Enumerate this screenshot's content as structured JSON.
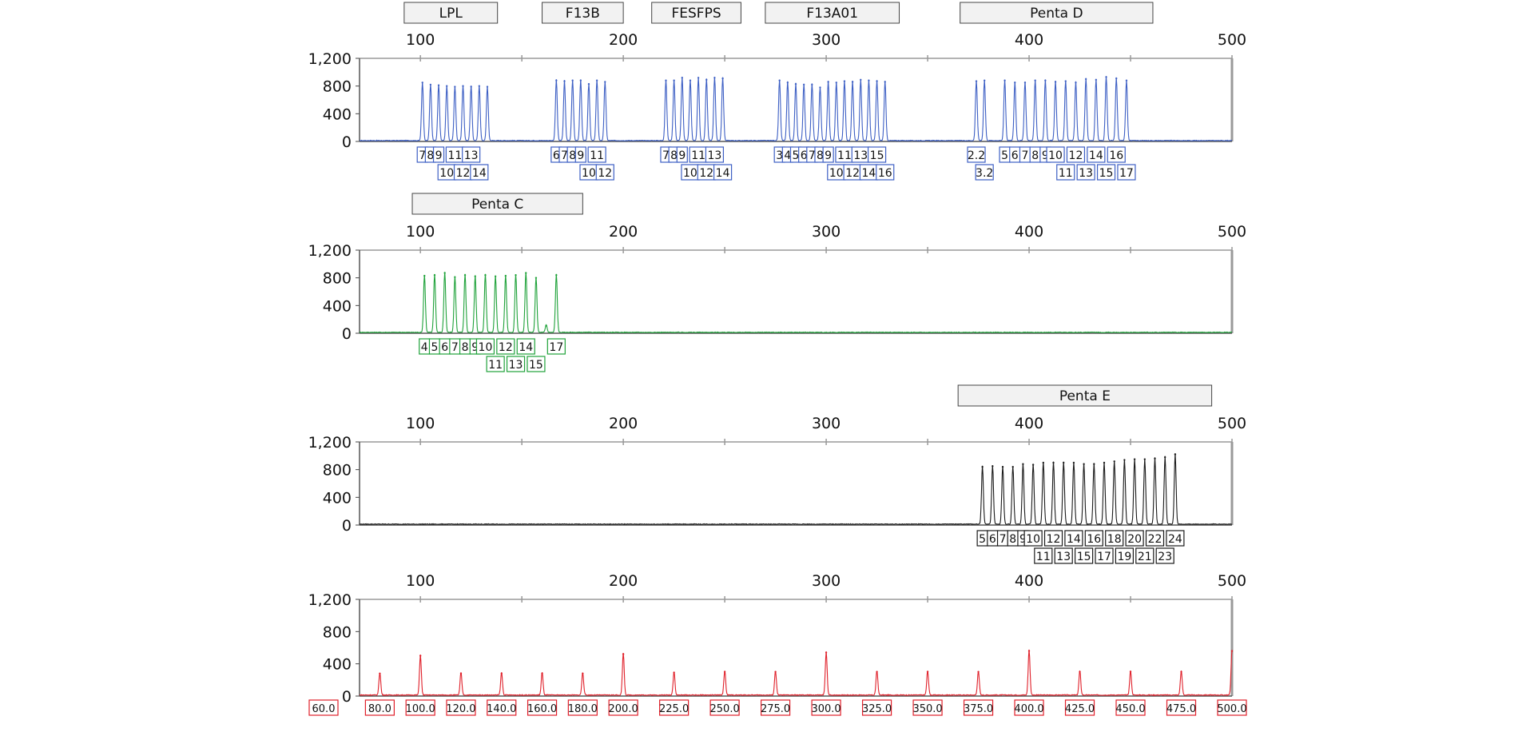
{
  "x_ticks": [
    "100",
    "200",
    "300",
    "400",
    "500"
  ],
  "y_ticks": [
    "1,200",
    "800",
    "400",
    "0"
  ],
  "x_axis": {
    "min": 70,
    "max": 500
  },
  "y_axis": {
    "min": 0,
    "max": 1200
  },
  "colors": {
    "blue": "#3d5fc4",
    "green": "#1fa23a",
    "black": "#1a1a1a",
    "red": "#e0202a",
    "axis": "#9a9a9a"
  },
  "chart_data": [
    {
      "type": "line",
      "series": [
        {
          "color": "#3d5fc4",
          "values": [
            {
              "x": 101,
              "y": 850
            },
            {
              "x": 105,
              "y": 820
            },
            {
              "x": 109,
              "y": 810
            },
            {
              "x": 113,
              "y": 800
            },
            {
              "x": 117,
              "y": 790
            },
            {
              "x": 121,
              "y": 800
            },
            {
              "x": 125,
              "y": 790
            },
            {
              "x": 129,
              "y": 800
            },
            {
              "x": 133,
              "y": 790
            },
            {
              "x": 167,
              "y": 880
            },
            {
              "x": 171,
              "y": 870
            },
            {
              "x": 175,
              "y": 880
            },
            {
              "x": 179,
              "y": 880
            },
            {
              "x": 183,
              "y": 830
            },
            {
              "x": 187,
              "y": 880
            },
            {
              "x": 191,
              "y": 860
            },
            {
              "x": 221,
              "y": 880
            },
            {
              "x": 225,
              "y": 880
            },
            {
              "x": 229,
              "y": 920
            },
            {
              "x": 233,
              "y": 880
            },
            {
              "x": 237,
              "y": 920
            },
            {
              "x": 241,
              "y": 890
            },
            {
              "x": 245,
              "y": 920
            },
            {
              "x": 249,
              "y": 910
            },
            {
              "x": 277,
              "y": 880
            },
            {
              "x": 281,
              "y": 850
            },
            {
              "x": 285,
              "y": 830
            },
            {
              "x": 289,
              "y": 820
            },
            {
              "x": 293,
              "y": 820
            },
            {
              "x": 297,
              "y": 780
            },
            {
              "x": 301,
              "y": 860
            },
            {
              "x": 305,
              "y": 850
            },
            {
              "x": 309,
              "y": 870
            },
            {
              "x": 313,
              "y": 860
            },
            {
              "x": 317,
              "y": 890
            },
            {
              "x": 321,
              "y": 880
            },
            {
              "x": 325,
              "y": 870
            },
            {
              "x": 329,
              "y": 860
            },
            {
              "x": 374,
              "y": 870
            },
            {
              "x": 378,
              "y": 880
            },
            {
              "x": 388,
              "y": 880
            },
            {
              "x": 393,
              "y": 850
            },
            {
              "x": 398,
              "y": 850
            },
            {
              "x": 403,
              "y": 880
            },
            {
              "x": 408,
              "y": 880
            },
            {
              "x": 413,
              "y": 860
            },
            {
              "x": 418,
              "y": 870
            },
            {
              "x": 423,
              "y": 850
            },
            {
              "x": 428,
              "y": 900
            },
            {
              "x": 433,
              "y": 890
            },
            {
              "x": 438,
              "y": 930
            },
            {
              "x": 443,
              "y": 910
            },
            {
              "x": 448,
              "y": 880
            }
          ]
        }
      ],
      "ylim": [
        0,
        1200
      ],
      "markers": [
        {
          "name": "LPL",
          "range": [
            92,
            138
          ]
        },
        {
          "name": "F13B",
          "range": [
            160,
            200
          ]
        },
        {
          "name": "FESFPS",
          "range": [
            214,
            258
          ]
        },
        {
          "name": "F13A01",
          "range": [
            270,
            336
          ]
        },
        {
          "name": "Penta D",
          "range": [
            366,
            461
          ]
        }
      ],
      "allele_labels": [
        {
          "x": 101,
          "row": 1,
          "t": "7"
        },
        {
          "x": 105,
          "row": 1,
          "t": "8"
        },
        {
          "x": 109,
          "row": 1,
          "t": "9"
        },
        {
          "x": 113,
          "row": 2,
          "t": "10"
        },
        {
          "x": 117,
          "row": 1,
          "t": "11"
        },
        {
          "x": 121,
          "row": 2,
          "t": "12"
        },
        {
          "x": 125,
          "row": 1,
          "t": "13"
        },
        {
          "x": 129,
          "row": 2,
          "t": "14"
        },
        {
          "x": 167,
          "row": 1,
          "t": "6"
        },
        {
          "x": 171,
          "row": 1,
          "t": "7"
        },
        {
          "x": 175,
          "row": 1,
          "t": "8"
        },
        {
          "x": 179,
          "row": 1,
          "t": "9"
        },
        {
          "x": 183,
          "row": 2,
          "t": "10"
        },
        {
          "x": 187,
          "row": 1,
          "t": "11"
        },
        {
          "x": 191,
          "row": 2,
          "t": "12"
        },
        {
          "x": 221,
          "row": 1,
          "t": "7"
        },
        {
          "x": 225,
          "row": 1,
          "t": "8"
        },
        {
          "x": 229,
          "row": 1,
          "t": "9"
        },
        {
          "x": 233,
          "row": 2,
          "t": "10"
        },
        {
          "x": 237,
          "row": 1,
          "t": "11"
        },
        {
          "x": 241,
          "row": 2,
          "t": "12"
        },
        {
          "x": 245,
          "row": 1,
          "t": "13"
        },
        {
          "x": 249,
          "row": 2,
          "t": "14"
        },
        {
          "x": 277,
          "row": 1,
          "t": "3"
        },
        {
          "x": 281,
          "row": 1,
          "t": "4"
        },
        {
          "x": 285,
          "row": 1,
          "t": "5"
        },
        {
          "x": 289,
          "row": 1,
          "t": "6"
        },
        {
          "x": 293,
          "row": 1,
          "t": "7"
        },
        {
          "x": 297,
          "row": 1,
          "t": "8"
        },
        {
          "x": 301,
          "row": 1,
          "t": "9"
        },
        {
          "x": 305,
          "row": 2,
          "t": "10"
        },
        {
          "x": 309,
          "row": 1,
          "t": "11"
        },
        {
          "x": 313,
          "row": 2,
          "t": "12"
        },
        {
          "x": 317,
          "row": 1,
          "t": "13"
        },
        {
          "x": 321,
          "row": 2,
          "t": "14"
        },
        {
          "x": 325,
          "row": 1,
          "t": "15"
        },
        {
          "x": 329,
          "row": 2,
          "t": "16"
        },
        {
          "x": 374,
          "row": 1,
          "t": "2.2"
        },
        {
          "x": 378,
          "row": 2,
          "t": "3.2"
        },
        {
          "x": 388,
          "row": 1,
          "t": "5"
        },
        {
          "x": 393,
          "row": 1,
          "t": "6"
        },
        {
          "x": 398,
          "row": 1,
          "t": "7"
        },
        {
          "x": 403,
          "row": 1,
          "t": "8"
        },
        {
          "x": 408,
          "row": 1,
          "t": "9"
        },
        {
          "x": 413,
          "row": 1,
          "t": "10"
        },
        {
          "x": 418,
          "row": 2,
          "t": "11"
        },
        {
          "x": 423,
          "row": 1,
          "t": "12"
        },
        {
          "x": 428,
          "row": 2,
          "t": "13"
        },
        {
          "x": 433,
          "row": 1,
          "t": "14"
        },
        {
          "x": 438,
          "row": 2,
          "t": "15"
        },
        {
          "x": 443,
          "row": 1,
          "t": "16"
        },
        {
          "x": 448,
          "row": 2,
          "t": "17"
        }
      ]
    },
    {
      "type": "line",
      "series": [
        {
          "color": "#1fa23a",
          "values": [
            {
              "x": 102,
              "y": 830
            },
            {
              "x": 107,
              "y": 840
            },
            {
              "x": 112,
              "y": 870
            },
            {
              "x": 117,
              "y": 810
            },
            {
              "x": 122,
              "y": 840
            },
            {
              "x": 127,
              "y": 820
            },
            {
              "x": 132,
              "y": 840
            },
            {
              "x": 137,
              "y": 820
            },
            {
              "x": 142,
              "y": 830
            },
            {
              "x": 147,
              "y": 840
            },
            {
              "x": 152,
              "y": 870
            },
            {
              "x": 157,
              "y": 800
            },
            {
              "x": 162,
              "y": 110
            },
            {
              "x": 167,
              "y": 840
            }
          ]
        }
      ],
      "ylim": [
        0,
        1200
      ],
      "markers": [
        {
          "name": "Penta C",
          "range": [
            96,
            180
          ]
        }
      ],
      "allele_labels": [
        {
          "x": 102,
          "row": 1,
          "t": "4"
        },
        {
          "x": 107,
          "row": 1,
          "t": "5"
        },
        {
          "x": 112,
          "row": 1,
          "t": "6"
        },
        {
          "x": 117,
          "row": 1,
          "t": "7"
        },
        {
          "x": 122,
          "row": 1,
          "t": "8"
        },
        {
          "x": 127,
          "row": 1,
          "t": "9"
        },
        {
          "x": 132,
          "row": 1,
          "t": "10"
        },
        {
          "x": 137,
          "row": 2,
          "t": "11"
        },
        {
          "x": 142,
          "row": 1,
          "t": "12"
        },
        {
          "x": 147,
          "row": 2,
          "t": "13"
        },
        {
          "x": 152,
          "row": 1,
          "t": "14"
        },
        {
          "x": 157,
          "row": 2,
          "t": "15"
        },
        {
          "x": 167,
          "row": 1,
          "t": "17"
        }
      ]
    },
    {
      "type": "line",
      "series": [
        {
          "color": "#1a1a1a",
          "values": [
            {
              "x": 377,
              "y": 840
            },
            {
              "x": 382,
              "y": 850
            },
            {
              "x": 387,
              "y": 840
            },
            {
              "x": 392,
              "y": 840
            },
            {
              "x": 397,
              "y": 880
            },
            {
              "x": 402,
              "y": 870
            },
            {
              "x": 407,
              "y": 900
            },
            {
              "x": 412,
              "y": 900
            },
            {
              "x": 417,
              "y": 900
            },
            {
              "x": 422,
              "y": 900
            },
            {
              "x": 427,
              "y": 880
            },
            {
              "x": 432,
              "y": 880
            },
            {
              "x": 437,
              "y": 900
            },
            {
              "x": 442,
              "y": 920
            },
            {
              "x": 447,
              "y": 940
            },
            {
              "x": 452,
              "y": 950
            },
            {
              "x": 457,
              "y": 950
            },
            {
              "x": 462,
              "y": 960
            },
            {
              "x": 467,
              "y": 980
            },
            {
              "x": 472,
              "y": 1020
            }
          ]
        }
      ],
      "ylim": [
        0,
        1200
      ],
      "markers": [
        {
          "name": "Penta E",
          "range": [
            365,
            490
          ]
        }
      ],
      "allele_labels": [
        {
          "x": 377,
          "row": 1,
          "t": "5"
        },
        {
          "x": 382,
          "row": 1,
          "t": "6"
        },
        {
          "x": 387,
          "row": 1,
          "t": "7"
        },
        {
          "x": 392,
          "row": 1,
          "t": "8"
        },
        {
          "x": 397,
          "row": 1,
          "t": "9"
        },
        {
          "x": 402,
          "row": 1,
          "t": "10"
        },
        {
          "x": 407,
          "row": 2,
          "t": "11"
        },
        {
          "x": 412,
          "row": 1,
          "t": "12"
        },
        {
          "x": 417,
          "row": 2,
          "t": "13"
        },
        {
          "x": 422,
          "row": 1,
          "t": "14"
        },
        {
          "x": 427,
          "row": 2,
          "t": "15"
        },
        {
          "x": 432,
          "row": 1,
          "t": "16"
        },
        {
          "x": 437,
          "row": 2,
          "t": "17"
        },
        {
          "x": 442,
          "row": 1,
          "t": "18"
        },
        {
          "x": 447,
          "row": 2,
          "t": "19"
        },
        {
          "x": 452,
          "row": 1,
          "t": "20"
        },
        {
          "x": 457,
          "row": 2,
          "t": "21"
        },
        {
          "x": 462,
          "row": 1,
          "t": "22"
        },
        {
          "x": 467,
          "row": 2,
          "t": "23"
        },
        {
          "x": 472,
          "row": 1,
          "t": "24"
        }
      ]
    },
    {
      "type": "line",
      "series": [
        {
          "color": "#e0202a",
          "values": [
            {
              "x": 80,
              "y": 280
            },
            {
              "x": 100,
              "y": 500
            },
            {
              "x": 120,
              "y": 280
            },
            {
              "x": 140,
              "y": 280
            },
            {
              "x": 160,
              "y": 280
            },
            {
              "x": 180,
              "y": 280
            },
            {
              "x": 200,
              "y": 520
            },
            {
              "x": 225,
              "y": 290
            },
            {
              "x": 250,
              "y": 300
            },
            {
              "x": 275,
              "y": 300
            },
            {
              "x": 300,
              "y": 540
            },
            {
              "x": 325,
              "y": 300
            },
            {
              "x": 350,
              "y": 300
            },
            {
              "x": 375,
              "y": 300
            },
            {
              "x": 400,
              "y": 560
            },
            {
              "x": 425,
              "y": 300
            },
            {
              "x": 450,
              "y": 300
            },
            {
              "x": 475,
              "y": 300
            },
            {
              "x": 500,
              "y": 560
            }
          ]
        }
      ],
      "ylim": [
        0,
        1200
      ],
      "size_labels": [
        {
          "x": 60,
          "t": "60.0"
        },
        {
          "x": 80,
          "t": "80.0"
        },
        {
          "x": 100,
          "t": "100.0"
        },
        {
          "x": 120,
          "t": "120.0"
        },
        {
          "x": 140,
          "t": "140.0"
        },
        {
          "x": 160,
          "t": "160.0"
        },
        {
          "x": 180,
          "t": "180.0"
        },
        {
          "x": 200,
          "t": "200.0"
        },
        {
          "x": 225,
          "t": "225.0"
        },
        {
          "x": 250,
          "t": "250.0"
        },
        {
          "x": 275,
          "t": "275.0"
        },
        {
          "x": 300,
          "t": "300.0"
        },
        {
          "x": 325,
          "t": "325.0"
        },
        {
          "x": 350,
          "t": "350.0"
        },
        {
          "x": 375,
          "t": "375.0"
        },
        {
          "x": 400,
          "t": "400.0"
        },
        {
          "x": 425,
          "t": "425.0"
        },
        {
          "x": 450,
          "t": "450.0"
        },
        {
          "x": 475,
          "t": "475.0"
        },
        {
          "x": 500,
          "t": "500.0"
        }
      ]
    }
  ]
}
